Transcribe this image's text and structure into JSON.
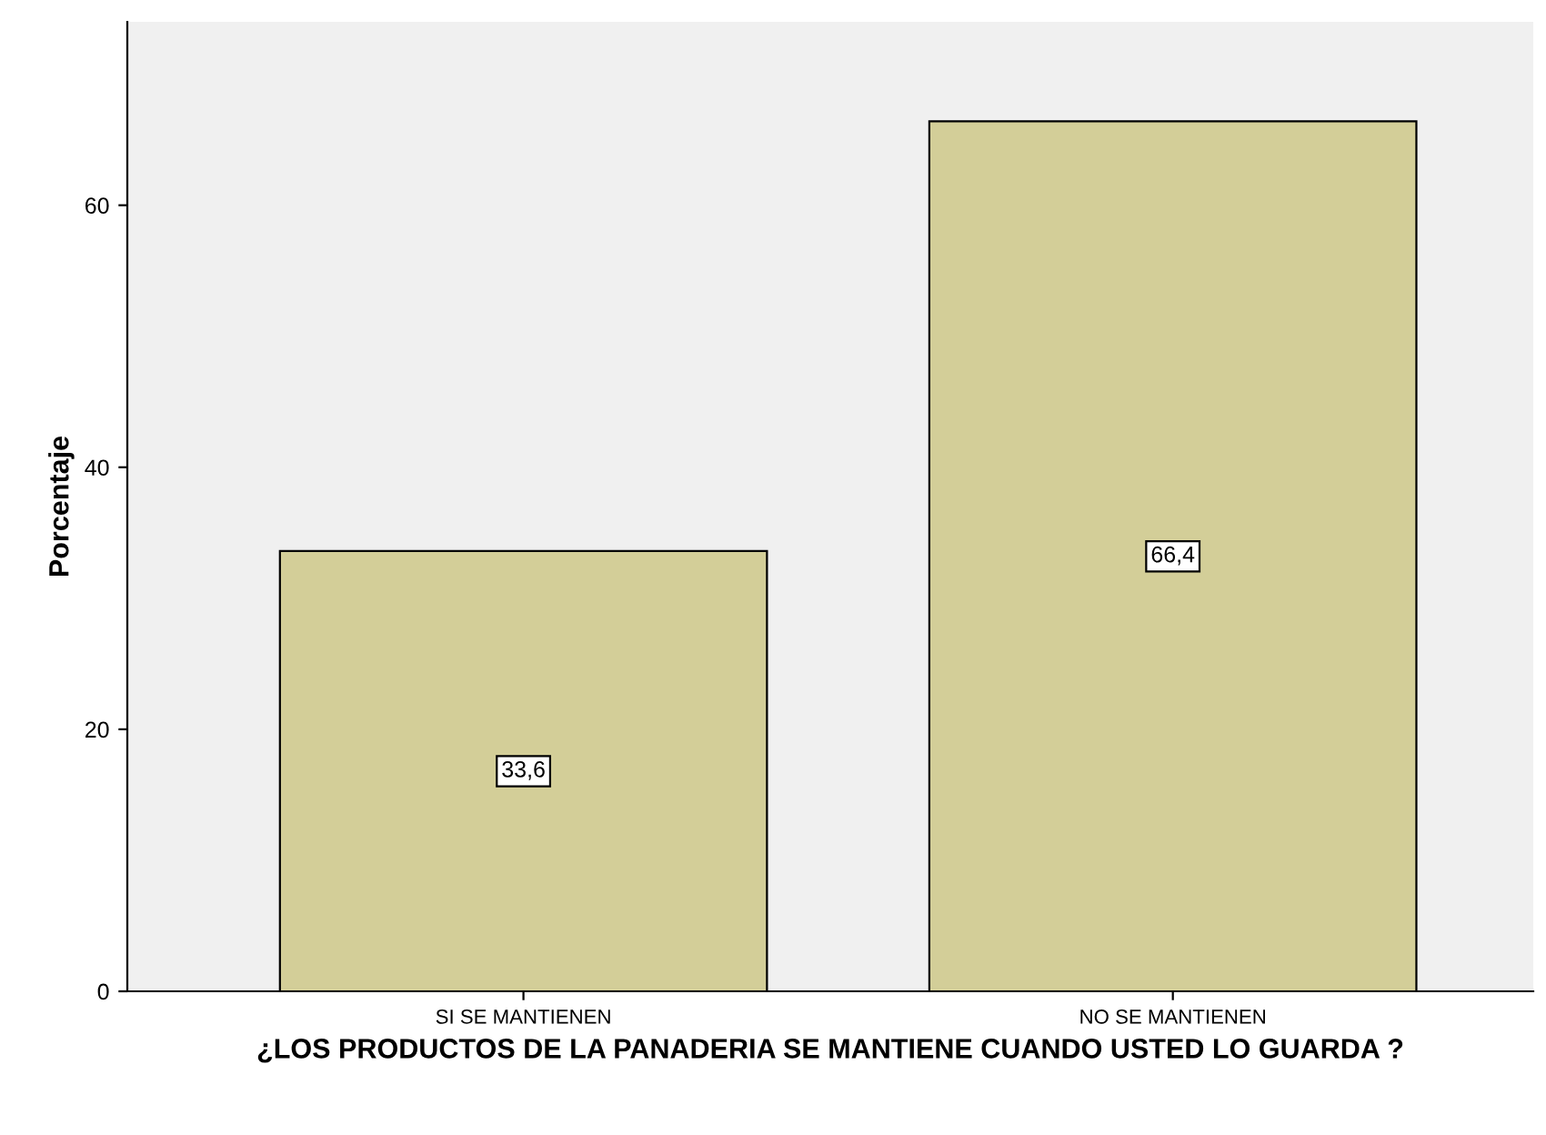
{
  "chart_data": {
    "type": "bar",
    "xlabel": "¿LOS PRODUCTOS DE LA PANADERIA SE MANTIENE CUANDO USTED LO GUARDA ?",
    "ylabel": "Porcentaje",
    "categories": [
      "SI SE MANTIENEN",
      "NO SE MANTIENEN"
    ],
    "values": [
      33.6,
      66.4
    ],
    "value_labels": [
      "33,6",
      "66,4"
    ],
    "color": "#d3ce98",
    "ylim": [
      0,
      74
    ],
    "yticks": [
      0,
      20,
      40,
      60
    ],
    "grid": false
  }
}
